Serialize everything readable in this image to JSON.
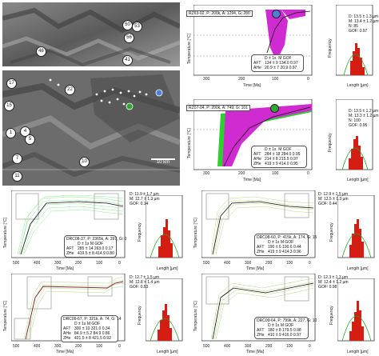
{
  "map_top": {
    "sample_labels": [
      "46",
      "50",
      "53",
      "56",
      "41"
    ]
  },
  "map_bottom": {
    "sample_labels": [
      "17",
      "22",
      "15",
      "1",
      "4",
      "5",
      "7",
      "10",
      "11"
    ],
    "scalebar": "10 km"
  },
  "panels": [
    {
      "id": "p1",
      "title": "RZ63-02, P: 200k, A: 1294, G: 280",
      "dot": "#4f7fd6",
      "stats": [
        "D: 13.5 ± 1.3 µm",
        "M: 13.4 ± 1.2 µm",
        "N: 85",
        "GOF: 0.97"
      ],
      "table_header": [
        "D ± 1s",
        "M",
        "GOF"
      ],
      "table_rows": [
        [
          "AFT",
          "134 ± 9",
          "134.0",
          "0.97"
        ],
        [
          "AHe",
          "20.9 ± 7",
          "20.9",
          "0.97"
        ]
      ],
      "xticks": [
        "300",
        "200",
        "100",
        "0"
      ],
      "xlabel": "Time [Ma]",
      "ylabel": "Temperature [°C]",
      "hticks": [
        "8",
        "12",
        "16"
      ],
      "hlabel": "Length [µm]",
      "hylabel": "Frequency"
    },
    {
      "id": "p2",
      "title": "RZ07-04, P: 200k, A: 749, G: 101",
      "dot": "#2ea82e",
      "stats": [
        "D: 13.5 ± 1.2 µm",
        "M: 13.3 ± 1.2 µm",
        "N: 100",
        "GOF: 0.95"
      ],
      "table_header": [
        "D ± 1s",
        "M",
        "GOF"
      ],
      "table_rows": [
        [
          "AFT",
          "284 ± 18",
          "284.0",
          "0.95"
        ],
        [
          "AHe",
          "214 ± 8",
          "215.5",
          "0.97"
        ],
        [
          "ZHe",
          "419 ± 9",
          "414.0",
          "0.95"
        ]
      ],
      "xticks": [
        "300",
        "200",
        "100",
        "0"
      ],
      "xlabel": "Time [Ma]",
      "ylabel": "Temperature [°C]",
      "hticks": [
        "8",
        "12",
        "16"
      ],
      "hlabel": "Length [µm]",
      "hylabel": "Frequency"
    },
    {
      "id": "p3",
      "title": "DRC08-37, P: 2365k, A: 397, G: 0",
      "dot": "",
      "stats": [
        "D: 11.9 ± 1.7 µm",
        "M: 12.7 ± 1.3 µm",
        "GOF: 0.14"
      ],
      "table_header": [
        "D ± 1s",
        "M",
        "GOF"
      ],
      "table_rows": [
        [
          "AFT",
          "285 ± 14",
          "263.0",
          "0.17"
        ],
        [
          "ZHe",
          "419.5 ± 8",
          "414.9",
          "0.80"
        ]
      ],
      "xticks": [
        "500",
        "400",
        "300",
        "200",
        "100",
        "0"
      ],
      "xlabel": "Time [Ma]",
      "ylabel": "Temperature [°C]",
      "hticks": [
        "4",
        "8",
        "12",
        "16"
      ],
      "hlabel": "Length [µm]",
      "hylabel": "Frequency"
    },
    {
      "id": "p4",
      "title": "DRC08-60, P: 415k, A: 174, G: 15",
      "dot": "",
      "stats": [
        "D: 12.9 ± 1.5 µm",
        "M: 12.5 ± 1.3 µm",
        "GOF: 0.44"
      ],
      "table_header": [
        "D ± 1s",
        "M",
        "GOF"
      ],
      "table_rows": [
        [
          "AFT",
          "190 ± 6",
          "190.6",
          "0.44"
        ],
        [
          "ZHe",
          "419 ± 9",
          "414.3",
          "0.96"
        ]
      ],
      "xticks": [
        "500",
        "400",
        "300",
        "200",
        "100",
        "0"
      ],
      "xlabel": "Time [Ma]",
      "ylabel": "Temperature [°C]",
      "hticks": [
        "4",
        "8",
        "12",
        "16"
      ],
      "hlabel": "Length [µm]",
      "hylabel": "Frequency"
    },
    {
      "id": "p5",
      "title": "DRC09-67, P: 321k, A: 74, G: 14",
      "dot": "",
      "stats": [
        "D: 12.7 ± 1.5 µm",
        "M: 12.8 ± 1.4 µm",
        "GOF: 0.53"
      ],
      "table_header": [
        "D ± 1s",
        "M",
        "GOF"
      ],
      "table_rows": [
        [
          "AFT",
          "300 ± 10",
          "321.0",
          "0.34"
        ],
        [
          "AHe",
          "84.9 ± 5.2",
          "84.9",
          "0.86"
        ],
        [
          "ZHe",
          "421.5 ± 8",
          "421.5",
          "0.92"
        ]
      ],
      "xticks": [
        "500",
        "400",
        "300",
        "200",
        "100",
        "0"
      ],
      "xlabel": "Time [Ma]",
      "ylabel": "Temperature [°C]",
      "hticks": [
        "4",
        "8",
        "12",
        "16"
      ],
      "hlabel": "Length [µm]",
      "hylabel": "Frequency"
    },
    {
      "id": "p6",
      "title": "DRC09-64, P: 799k, A: 227, G: 10",
      "dot": "",
      "stats": [
        "D: 12.3 ± 1.3 µm",
        "M: 12.4 ± 1.2 µm",
        "GOF: 0.98"
      ],
      "table_header": [
        "D ± 1s",
        "M",
        "GOF"
      ],
      "table_rows": [
        [
          "AFT",
          "180 ± 8",
          "179.5",
          "0.98"
        ],
        [
          "ZHe",
          "410 ± 9",
          "416.0",
          "0.97"
        ]
      ],
      "xticks": [
        "500",
        "400",
        "300",
        "200",
        "100",
        "0"
      ],
      "xlabel": "Time [Ma]",
      "ylabel": "Temperature [°C]",
      "hticks": [
        "4",
        "8",
        "12",
        "16"
      ],
      "hlabel": "Length [µm]",
      "hylabel": "Frequency"
    }
  ]
}
